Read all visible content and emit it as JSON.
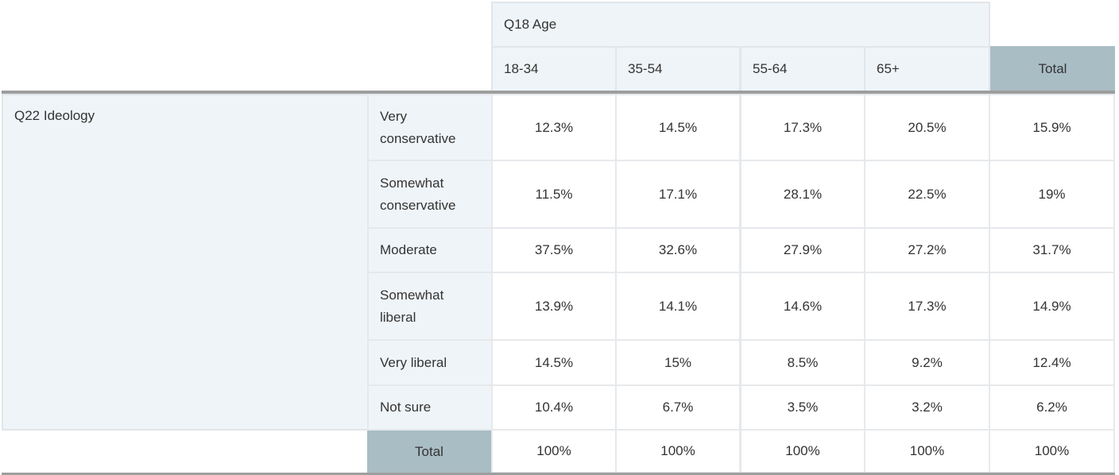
{
  "column_group": {
    "label": "Q18 Age"
  },
  "columns": [
    "18-34",
    "35-54",
    "55-64",
    "65+",
    "Total"
  ],
  "row_group": {
    "label": "Q22 Ideology"
  },
  "rows": [
    {
      "label": "Very conservative",
      "values": [
        "12.3%",
        "14.5%",
        "17.3%",
        "20.5%",
        "15.9%"
      ]
    },
    {
      "label": "Somewhat conservative",
      "values": [
        "11.5%",
        "17.1%",
        "28.1%",
        "22.5%",
        "19%"
      ]
    },
    {
      "label": "Moderate",
      "values": [
        "37.5%",
        "32.6%",
        "27.9%",
        "27.2%",
        "31.7%"
      ]
    },
    {
      "label": "Somewhat liberal",
      "values": [
        "13.9%",
        "14.1%",
        "14.6%",
        "17.3%",
        "14.9%"
      ]
    },
    {
      "label": "Very liberal",
      "values": [
        "14.5%",
        "15%",
        "8.5%",
        "9.2%",
        "12.4%"
      ]
    },
    {
      "label": "Not sure",
      "values": [
        "10.4%",
        "6.7%",
        "3.5%",
        "3.2%",
        "6.2%"
      ]
    }
  ],
  "total_row": {
    "label": "Total",
    "values": [
      "100%",
      "100%",
      "100%",
      "100%",
      "100%"
    ]
  }
}
